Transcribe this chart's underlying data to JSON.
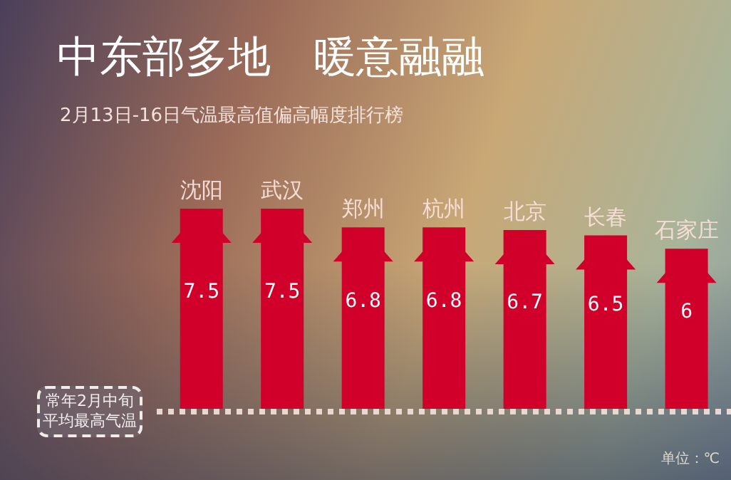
{
  "chart_data": {
    "type": "bar",
    "title": "中东部多地　暖意融融",
    "subtitle": "2月13日-16日气温最高值偏高幅度排行榜",
    "categories": [
      "沈阳",
      "武汉",
      "郑州",
      "杭州",
      "北京",
      "长春",
      "石家庄"
    ],
    "values": [
      7.5,
      7.5,
      6.8,
      6.8,
      6.7,
      6.5,
      6
    ],
    "color": "#d0002a",
    "data_labels": true,
    "annotations": [
      "常年2月中旬平均最高气温",
      "单位：℃"
    ]
  }
}
